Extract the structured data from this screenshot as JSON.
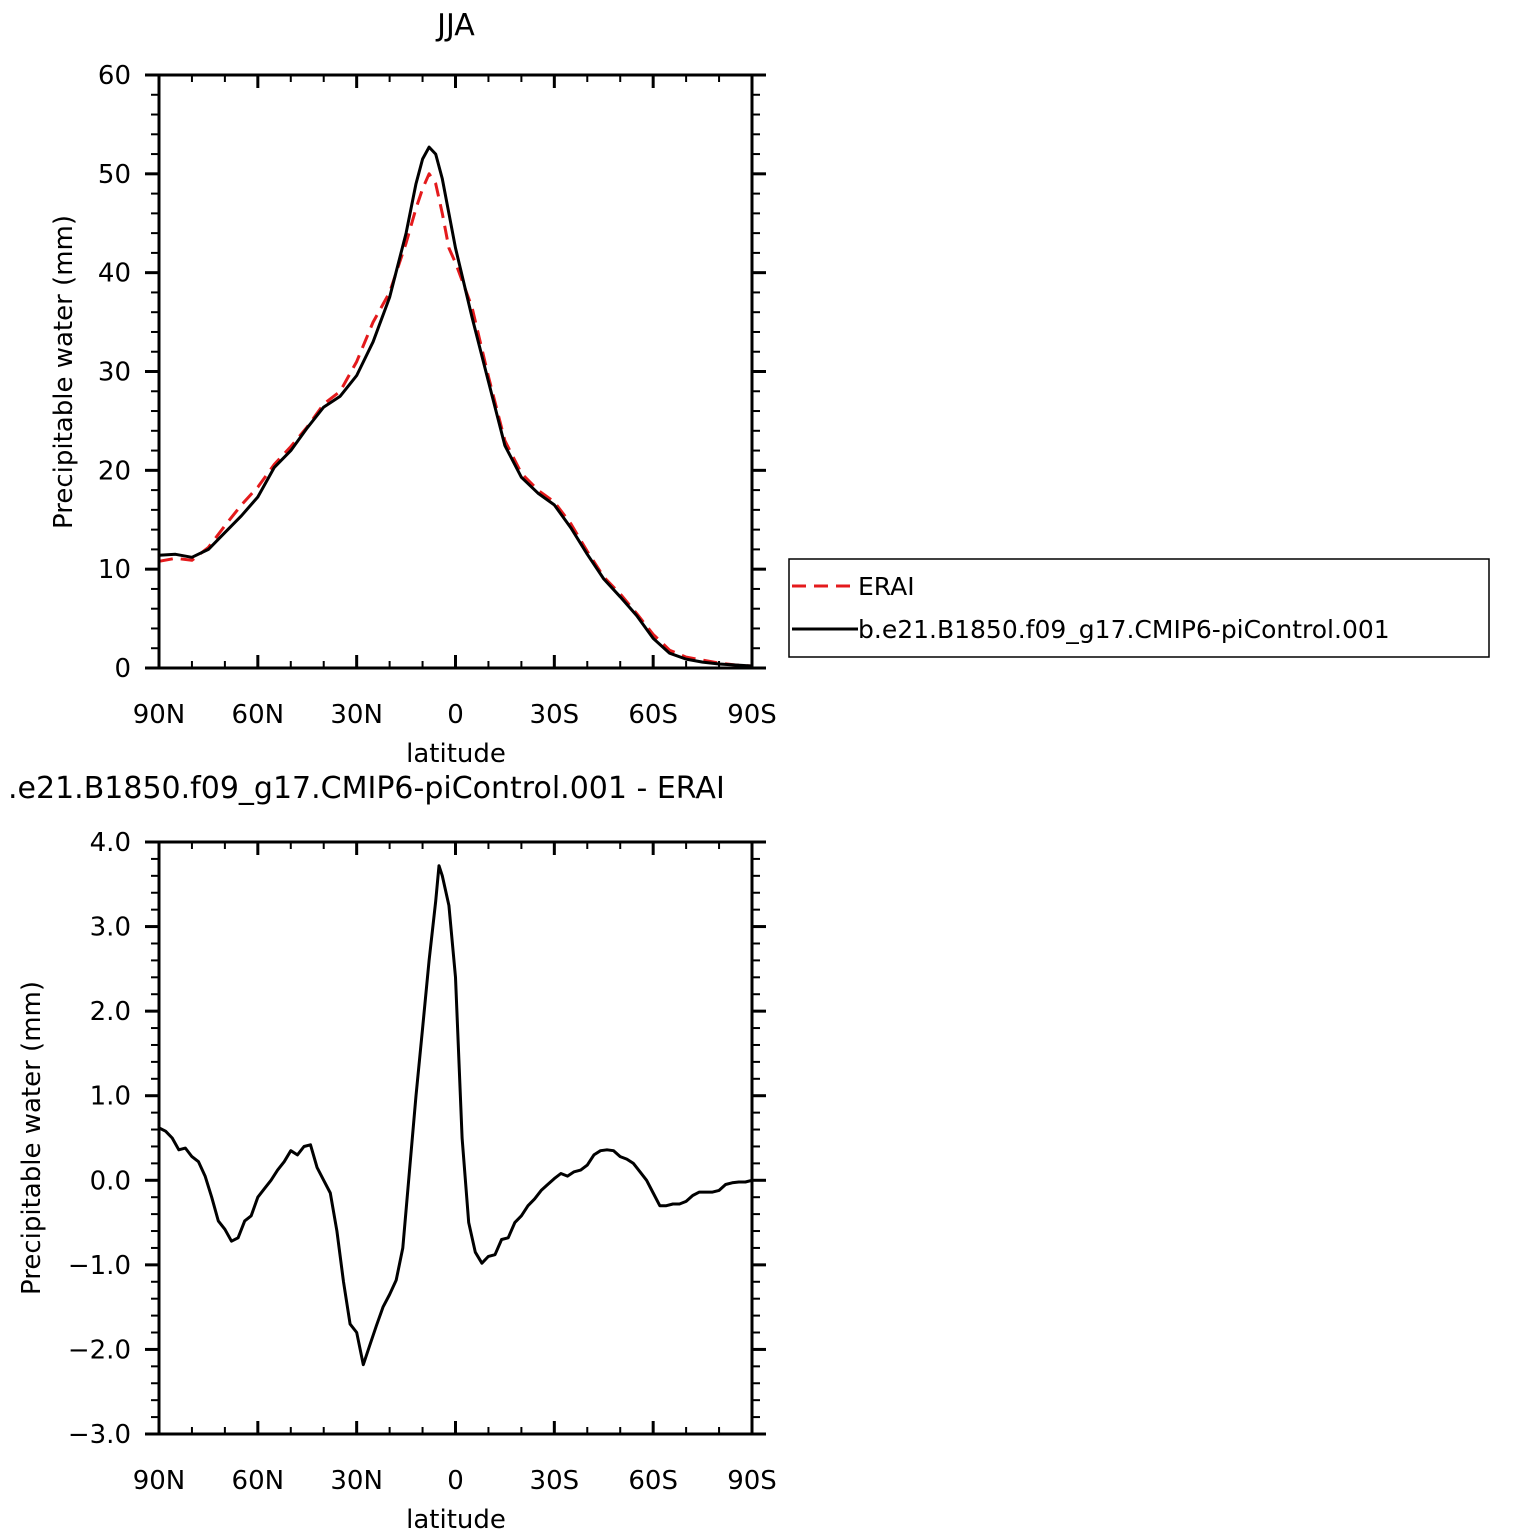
{
  "chart_data": [
    {
      "type": "line",
      "title": "JJA",
      "xlabel": "latitude",
      "ylabel": "Precipitable water (mm)",
      "xlim": [
        -90,
        90
      ],
      "ylim": [
        0,
        60
      ],
      "xticks": [
        -90,
        -60,
        -30,
        0,
        30,
        60,
        90
      ],
      "xticklabels": [
        "90N",
        "60N",
        "30N",
        "0",
        "30S",
        "60S",
        "90S"
      ],
      "yticks": [
        0,
        10,
        20,
        30,
        40,
        50,
        60
      ],
      "yticklabels": [
        "0",
        "10",
        "20",
        "30",
        "40",
        "50",
        "60"
      ],
      "grid": false,
      "legend_position": "right",
      "series": [
        {
          "name": "ERAI",
          "color": "#e41a1c",
          "dash": "dashed",
          "x": [
            -90,
            -85,
            -80,
            -75,
            -70,
            -65,
            -60,
            -55,
            -50,
            -45,
            -40,
            -35,
            -30,
            -25,
            -20,
            -15,
            -12,
            -10,
            -8,
            -6,
            -4,
            -2,
            0,
            5,
            10,
            15,
            20,
            25,
            30,
            35,
            40,
            45,
            50,
            55,
            60,
            65,
            70,
            75,
            80,
            85,
            90
          ],
          "y": [
            10.8,
            11.1,
            10.9,
            12.2,
            14.4,
            16.5,
            18.3,
            20.6,
            22.4,
            24.4,
            26.7,
            28.0,
            31.0,
            35.0,
            38.0,
            43.0,
            46.5,
            48.5,
            50.0,
            49.0,
            46.0,
            42.5,
            41.0,
            36.5,
            29.5,
            23.0,
            19.7,
            18.0,
            16.8,
            14.6,
            11.8,
            9.2,
            7.5,
            5.5,
            3.4,
            1.8,
            1.1,
            0.8,
            0.5,
            0.3,
            0.2
          ]
        },
        {
          "name": "b.e21.B1850.f09_g17.CMIP6-piControl.001",
          "color": "#000000",
          "dash": "solid",
          "x": [
            -90,
            -85,
            -80,
            -75,
            -70,
            -65,
            -60,
            -55,
            -50,
            -45,
            -40,
            -35,
            -30,
            -25,
            -20,
            -15,
            -12,
            -10,
            -8,
            -6,
            -4,
            -2,
            0,
            5,
            10,
            15,
            20,
            25,
            30,
            35,
            40,
            45,
            50,
            55,
            60,
            65,
            70,
            75,
            80,
            85,
            90
          ],
          "y": [
            11.4,
            11.5,
            11.2,
            12.0,
            13.7,
            15.4,
            17.3,
            20.3,
            22.0,
            24.3,
            26.4,
            27.5,
            29.6,
            33.0,
            37.5,
            44.0,
            49.0,
            51.5,
            52.7,
            52.0,
            49.5,
            46.0,
            42.5,
            35.5,
            29.0,
            22.5,
            19.3,
            17.7,
            16.5,
            14.2,
            11.5,
            9.0,
            7.2,
            5.3,
            3.0,
            1.5,
            0.9,
            0.6,
            0.4,
            0.3,
            0.2
          ]
        }
      ]
    },
    {
      "type": "line",
      "title": ".e21.B1850.f09_g17.CMIP6-piControl.001 - ERAI",
      "xlabel": "latitude",
      "ylabel": "Precipitable water (mm)",
      "xlim": [
        -90,
        90
      ],
      "ylim": [
        -3.0,
        4.0
      ],
      "xticks": [
        -90,
        -60,
        -30,
        0,
        30,
        60,
        90
      ],
      "xticklabels": [
        "90N",
        "60N",
        "30N",
        "0",
        "30S",
        "60S",
        "90S"
      ],
      "yticks": [
        -3,
        -2,
        -1,
        0,
        1,
        2,
        3,
        4
      ],
      "yticklabels": [
        "-3.0",
        "-2.0",
        "-1.0",
        "0.0",
        "1.0",
        "2.0",
        "3.0",
        "4.0"
      ],
      "grid": false,
      "series": [
        {
          "color": "#000000",
          "dash": "solid",
          "x": [
            -90,
            -88,
            -86,
            -84,
            -82,
            -80,
            -78,
            -76,
            -74,
            -72,
            -70,
            -68,
            -66,
            -64,
            -62,
            -60,
            -58,
            -56,
            -54,
            -52,
            -50,
            -48,
            -46,
            -44,
            -42,
            -40,
            -38,
            -36,
            -34,
            -32,
            -30,
            -28,
            -26,
            -24,
            -22,
            -20,
            -18,
            -16,
            -14,
            -12,
            -10,
            -8,
            -6,
            -5,
            -4,
            -2,
            0,
            2,
            4,
            6,
            8,
            10,
            12,
            14,
            16,
            18,
            20,
            22,
            24,
            26,
            28,
            30,
            32,
            34,
            36,
            38,
            40,
            42,
            44,
            46,
            48,
            50,
            52,
            54,
            56,
            58,
            60,
            62,
            64,
            66,
            68,
            70,
            72,
            74,
            76,
            78,
            80,
            82,
            84,
            86,
            88,
            90
          ],
          "y": [
            0.62,
            0.58,
            0.5,
            0.36,
            0.38,
            0.28,
            0.22,
            0.05,
            -0.2,
            -0.48,
            -0.58,
            -0.72,
            -0.68,
            -0.48,
            -0.42,
            -0.2,
            -0.1,
            0.0,
            0.12,
            0.22,
            0.35,
            0.3,
            0.4,
            0.42,
            0.15,
            0.0,
            -0.15,
            -0.6,
            -1.2,
            -1.7,
            -1.8,
            -2.18,
            -1.95,
            -1.72,
            -1.5,
            -1.35,
            -1.18,
            -0.8,
            0.1,
            1.0,
            1.8,
            2.6,
            3.3,
            3.72,
            3.6,
            3.25,
            2.4,
            0.5,
            -0.5,
            -0.85,
            -0.98,
            -0.9,
            -0.88,
            -0.7,
            -0.68,
            -0.5,
            -0.42,
            -0.3,
            -0.22,
            -0.12,
            -0.05,
            0.02,
            0.08,
            0.05,
            0.1,
            0.12,
            0.18,
            0.3,
            0.35,
            0.36,
            0.35,
            0.28,
            0.25,
            0.2,
            0.1,
            0.0,
            -0.15,
            -0.3,
            -0.3,
            -0.28,
            -0.28,
            -0.25,
            -0.18,
            -0.14,
            -0.14,
            -0.14,
            -0.12,
            -0.05,
            -0.03,
            -0.02,
            -0.02,
            0.0
          ]
        }
      ]
    }
  ]
}
